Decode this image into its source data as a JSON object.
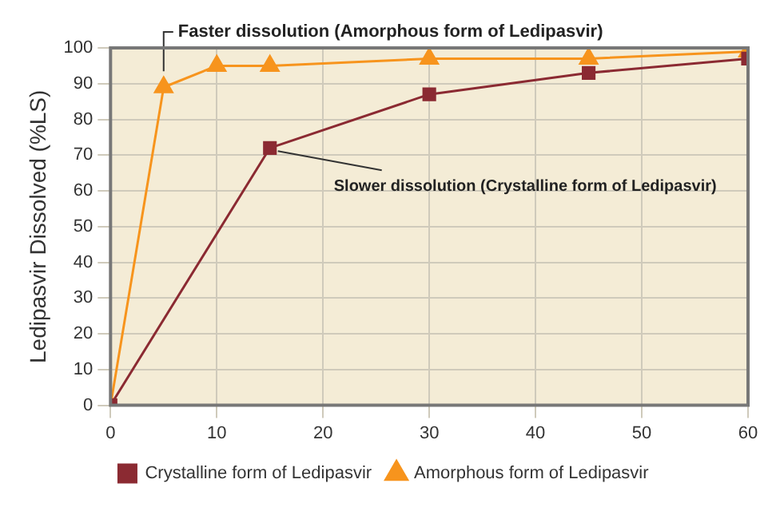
{
  "chart_data": {
    "type": "line",
    "ylabel": "Ledipasvir Dissolved (%LS)",
    "xlim": [
      0,
      60
    ],
    "xticks": [
      0,
      10,
      20,
      30,
      40,
      50,
      60
    ],
    "ylim": [
      0,
      100
    ],
    "yticks": [
      0,
      10,
      20,
      30,
      40,
      50,
      60,
      70,
      80,
      90,
      100
    ],
    "grid": true,
    "legend": "bottom",
    "line_style": "solid",
    "series": [
      {
        "name": "Crystalline form of Ledipasvir",
        "color": "#8b2a32",
        "marker": "square",
        "x": [
          0,
          15,
          30,
          45,
          60
        ],
        "values": [
          0,
          72,
          87,
          93,
          97
        ]
      },
      {
        "name": "Amorphous form of Ledipasvir",
        "color": "#f7941d",
        "marker": "triangle",
        "x": [
          0,
          5,
          10,
          15,
          30,
          45,
          60
        ],
        "values": [
          0,
          89,
          95,
          95,
          97,
          97,
          99
        ]
      }
    ],
    "annotations": [
      {
        "text": "Faster dissolution (Amorphous form of Ledipasvir)",
        "x": 5,
        "y": 89
      },
      {
        "text": "Slower dissolution (Crystalline form of Ledipasvir)",
        "x": 15,
        "y": 72
      }
    ]
  }
}
